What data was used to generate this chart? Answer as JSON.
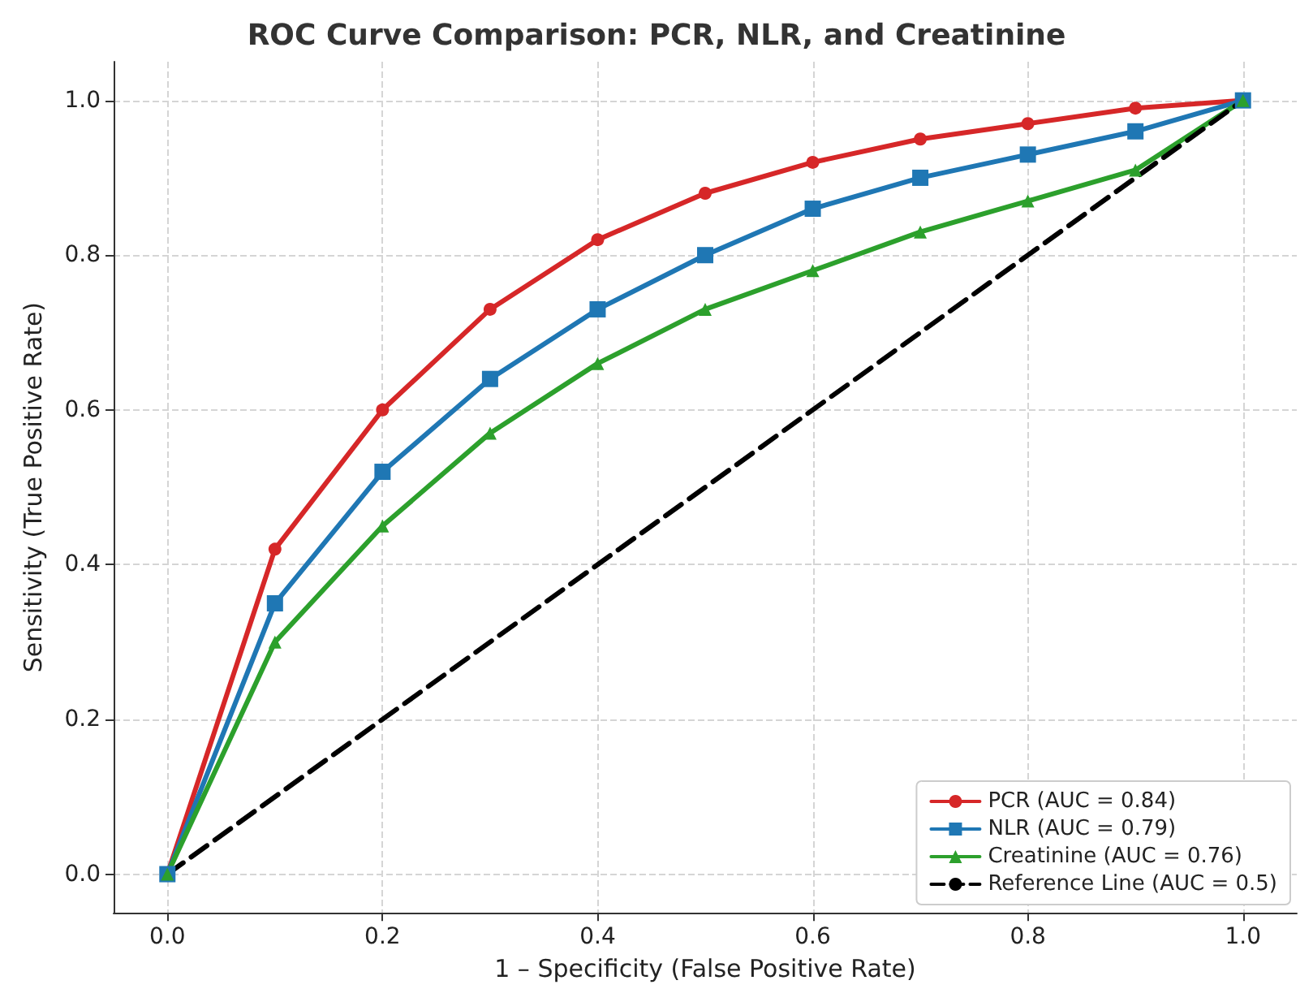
{
  "chart_data": {
    "type": "line",
    "title": "ROC Curve Comparison: PCR, NLR, and Creatinine",
    "xlabel": "1 – Specificity (False Positive Rate)",
    "ylabel": "Sensitivity (True Positive Rate)",
    "x": [
      0,
      0.1,
      0.2,
      0.3,
      0.4,
      0.5,
      0.6,
      0.7,
      0.8,
      0.9,
      1.0
    ],
    "series": [
      {
        "name": "PCR (AUC = 0.84)",
        "color": "#d62728",
        "marker": "circle",
        "values": [
          0,
          0.42,
          0.6,
          0.73,
          0.82,
          0.88,
          0.92,
          0.95,
          0.97,
          0.99,
          1.0
        ]
      },
      {
        "name": "NLR (AUC = 0.79)",
        "color": "#1f77b4",
        "marker": "square",
        "values": [
          0,
          0.35,
          0.52,
          0.64,
          0.73,
          0.8,
          0.86,
          0.9,
          0.93,
          0.96,
          1.0
        ]
      },
      {
        "name": "Creatinine (AUC = 0.76)",
        "color": "#2ca02c",
        "marker": "triangle",
        "values": [
          0,
          0.3,
          0.45,
          0.57,
          0.66,
          0.73,
          0.78,
          0.83,
          0.87,
          0.91,
          1.0
        ]
      },
      {
        "name": "Reference Line (AUC = 0.5)",
        "color": "#000000",
        "marker": "none",
        "line_style": "dashed",
        "x": [
          0,
          1
        ],
        "values": [
          0,
          1
        ]
      }
    ],
    "xlim": [
      -0.05,
      1.05
    ],
    "ylim": [
      -0.05,
      1.05
    ],
    "xticks": [
      {
        "value": 0,
        "label": "0.0"
      },
      {
        "value": 0.2,
        "label": "0.2"
      },
      {
        "value": 0.4,
        "label": "0.4"
      },
      {
        "value": 0.6,
        "label": "0.6"
      },
      {
        "value": 0.8,
        "label": "0.8"
      },
      {
        "value": 1,
        "label": "1.0"
      }
    ],
    "yticks": [
      {
        "value": 0,
        "label": "0.0"
      },
      {
        "value": 0.2,
        "label": "0.2"
      },
      {
        "value": 0.4,
        "label": "0.4"
      },
      {
        "value": 0.6,
        "label": "0.6"
      },
      {
        "value": 0.8,
        "label": "0.8"
      },
      {
        "value": 1,
        "label": "1.0"
      }
    ],
    "grid": true,
    "legend": "bottom right"
  }
}
